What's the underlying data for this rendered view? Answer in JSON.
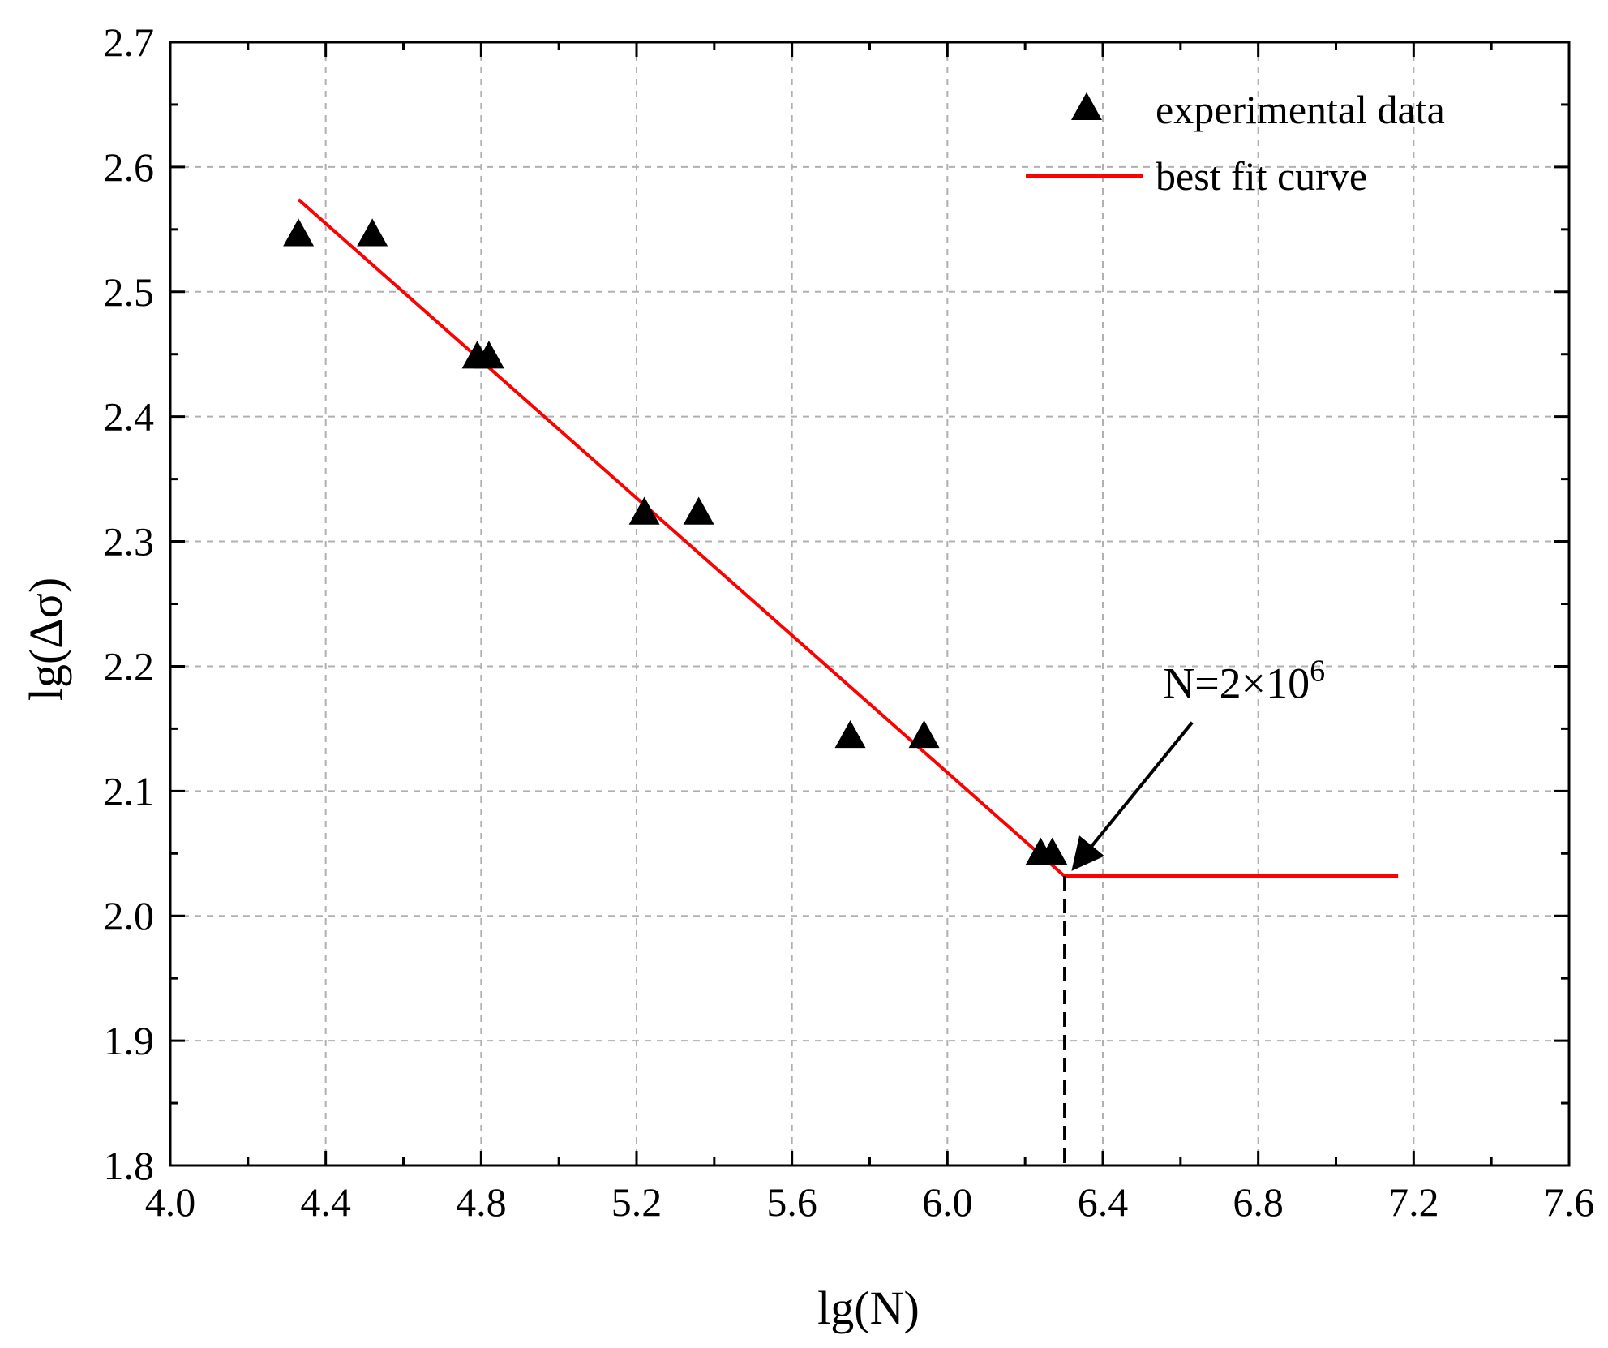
{
  "chart_data": {
    "type": "scatter",
    "title": "",
    "xlabel": "lg(N)",
    "ylabel": "lg(Δσ)",
    "xlim": [
      4.0,
      7.6
    ],
    "ylim": [
      1.8,
      2.7
    ],
    "x_ticks": [
      "4.0",
      "4.4",
      "4.8",
      "5.2",
      "5.6",
      "6.0",
      "6.4",
      "6.8",
      "7.2",
      "7.6"
    ],
    "y_ticks": [
      "1.8",
      "1.9",
      "2.0",
      "2.1",
      "2.2",
      "2.3",
      "2.4",
      "2.5",
      "2.6",
      "2.7"
    ],
    "grid": true,
    "legend_position": "top-right",
    "series": [
      {
        "name": "experimental data",
        "kind": "scatter",
        "marker": "triangle",
        "color": "#000000",
        "points": [
          {
            "x": 4.33,
            "y": 2.545
          },
          {
            "x": 4.52,
            "y": 2.545
          },
          {
            "x": 4.79,
            "y": 2.447
          },
          {
            "x": 4.82,
            "y": 2.447
          },
          {
            "x": 5.22,
            "y": 2.322
          },
          {
            "x": 5.36,
            "y": 2.322
          },
          {
            "x": 5.75,
            "y": 2.143
          },
          {
            "x": 5.94,
            "y": 2.143
          },
          {
            "x": 6.24,
            "y": 2.049
          },
          {
            "x": 6.27,
            "y": 2.049
          }
        ]
      },
      {
        "name": "best fit curve",
        "kind": "line",
        "color": "#ff0000",
        "points": [
          {
            "x": 4.33,
            "y": 2.574
          },
          {
            "x": 6.301,
            "y": 2.032
          },
          {
            "x": 7.16,
            "y": 2.032
          }
        ]
      }
    ],
    "annotations": [
      {
        "text_main": "N=2×10",
        "text_sup": "6",
        "arrow_from": {
          "x": 6.63,
          "y": 2.155
        },
        "arrow_to": {
          "x": 6.33,
          "y": 2.04
        },
        "dashed_drop_x": 6.301,
        "dashed_drop_y_top": 2.032
      }
    ]
  }
}
